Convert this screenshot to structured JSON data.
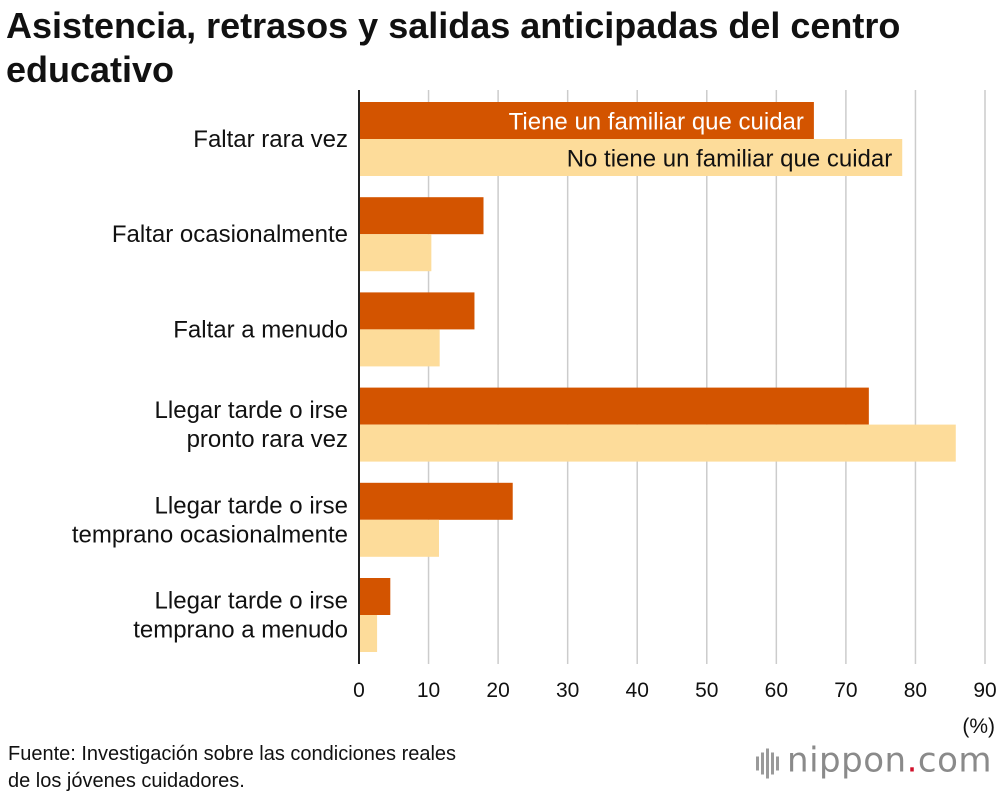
{
  "title": "Asistencia, retrasos y salidas anticipadas del centro educativo",
  "source": {
    "line1": "Fuente: Investigación sobre las condiciones reales",
    "line2": "de los jóvenes cuidadores."
  },
  "brand": {
    "name": "nippon",
    "dot": ".",
    "tld": "com"
  },
  "colors": {
    "caregiver": "#d35400",
    "non_caregiver": "#fddc9a",
    "grid": "#cccccc",
    "axis": "#222222"
  },
  "chart_data": {
    "type": "bar",
    "orientation": "horizontal",
    "title": "Asistencia, retrasos y salidas anticipadas del centro educativo",
    "categories": [
      [
        "Faltar rara vez"
      ],
      [
        "Faltar ocasionalmente"
      ],
      [
        "Faltar a menudo"
      ],
      [
        "Llegar tarde o irse",
        "pronto rara vez"
      ],
      [
        "Llegar tarde o irse",
        "temprano ocasionalmente"
      ],
      [
        "Llegar tarde o irse",
        "temprano a menudo"
      ]
    ],
    "series": [
      {
        "name": "Tiene un familiar que cuidar",
        "values": [
          65.4,
          17.9,
          16.6,
          73.3,
          22.1,
          4.5
        ]
      },
      {
        "name": "No tiene un familiar que cuidar",
        "values": [
          78.1,
          10.4,
          11.6,
          85.8,
          11.5,
          2.6
        ]
      }
    ],
    "xlim": [
      0,
      90
    ],
    "xticks": [
      "0",
      "10",
      "20",
      "30",
      "40",
      "50",
      "60",
      "70",
      "80",
      "90"
    ],
    "unit_label": "(%)",
    "grid": true,
    "legend": "inside-first-bars"
  }
}
